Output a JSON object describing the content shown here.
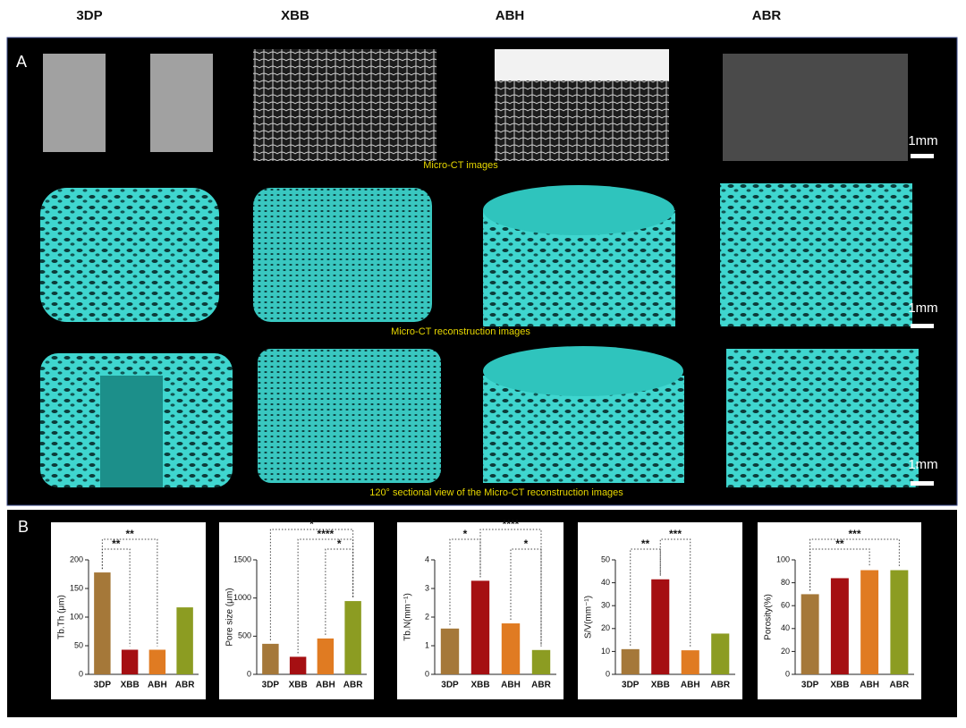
{
  "columns": [
    "3DP",
    "XBB",
    "ABH",
    "ABR"
  ],
  "panel_labels": [
    "A",
    "B"
  ],
  "captions": [
    "Micro-CT images",
    "Micro-CT reconstruction images",
    "120° sectional view of the Micro-CT reconstruction images"
  ],
  "scale_labels": [
    "1mm",
    "1mm",
    "1mm"
  ],
  "chart_data": [
    {
      "type": "bar",
      "y_label": "Tb.Th (μm)",
      "categories": [
        "3DP",
        "XBB",
        "ABH",
        "ABR"
      ],
      "values": [
        178,
        43,
        43,
        117
      ],
      "colors": [
        "#a57839",
        "#a50f12",
        "#e07b22",
        "#8c9c22"
      ],
      "ylim": [
        0,
        200
      ],
      "yticks": [
        0,
        50,
        100,
        150,
        200
      ],
      "annotations": [
        {
          "text": "**",
          "between": [
            "3DP",
            "XBB"
          ]
        },
        {
          "text": "**",
          "between": [
            "3DP",
            "ABH"
          ]
        }
      ]
    },
    {
      "type": "bar",
      "y_label": "Pore size (μm)",
      "categories": [
        "3DP",
        "XBB",
        "ABH",
        "ABR"
      ],
      "values": [
        400,
        230,
        470,
        960
      ],
      "colors": [
        "#a57839",
        "#a50f12",
        "#e07b22",
        "#8c9c22"
      ],
      "ylim": [
        0,
        1500
      ],
      "yticks": [
        0,
        500,
        1000,
        1500
      ],
      "annotations": [
        {
          "text": "*",
          "between": [
            "ABH",
            "ABR"
          ]
        },
        {
          "text": "****",
          "between": [
            "XBB",
            "ABR"
          ]
        },
        {
          "text": "*",
          "between": [
            "3DP",
            "ABR"
          ]
        }
      ]
    },
    {
      "type": "bar",
      "y_label": "Tb.N(mm⁻¹)",
      "categories": [
        "3DP",
        "XBB",
        "ABH",
        "ABR"
      ],
      "values": [
        1.6,
        3.27,
        1.78,
        0.85
      ],
      "colors": [
        "#a57839",
        "#a50f12",
        "#e07b22",
        "#8c9c22"
      ],
      "ylim": [
        0,
        4
      ],
      "yticks": [
        0,
        1,
        2,
        3,
        4
      ],
      "annotations": [
        {
          "text": "*",
          "between": [
            "ABH",
            "ABR"
          ]
        },
        {
          "text": "*",
          "between": [
            "3DP",
            "XBB"
          ]
        },
        {
          "text": "****",
          "between": [
            "XBB",
            "ABR"
          ]
        }
      ]
    },
    {
      "type": "bar",
      "y_label": "S/V(mm⁻¹)",
      "categories": [
        "3DP",
        "XBB",
        "ABH",
        "ABR"
      ],
      "values": [
        11,
        41.5,
        10.5,
        17.8
      ],
      "colors": [
        "#a57839",
        "#a50f12",
        "#e07b22",
        "#8c9c22"
      ],
      "ylim": [
        0,
        50
      ],
      "yticks": [
        0,
        10,
        20,
        30,
        40,
        50
      ],
      "annotations": [
        {
          "text": "**",
          "between": [
            "3DP",
            "XBB"
          ]
        },
        {
          "text": "***",
          "between": [
            "XBB",
            "ABH"
          ]
        }
      ]
    },
    {
      "type": "bar",
      "y_label": "Porosity(%)",
      "categories": [
        "3DP",
        "XBB",
        "ABH",
        "ABR"
      ],
      "values": [
        70,
        84,
        91,
        91
      ],
      "colors": [
        "#a57839",
        "#a50f12",
        "#e07b22",
        "#8c9c22"
      ],
      "ylim": [
        0,
        100
      ],
      "yticks": [
        0,
        20,
        40,
        60,
        80,
        100
      ],
      "annotations": [
        {
          "text": "**",
          "between": [
            "3DP",
            "ABH"
          ]
        },
        {
          "text": "***",
          "between": [
            "3DP",
            "ABR"
          ]
        }
      ]
    }
  ]
}
